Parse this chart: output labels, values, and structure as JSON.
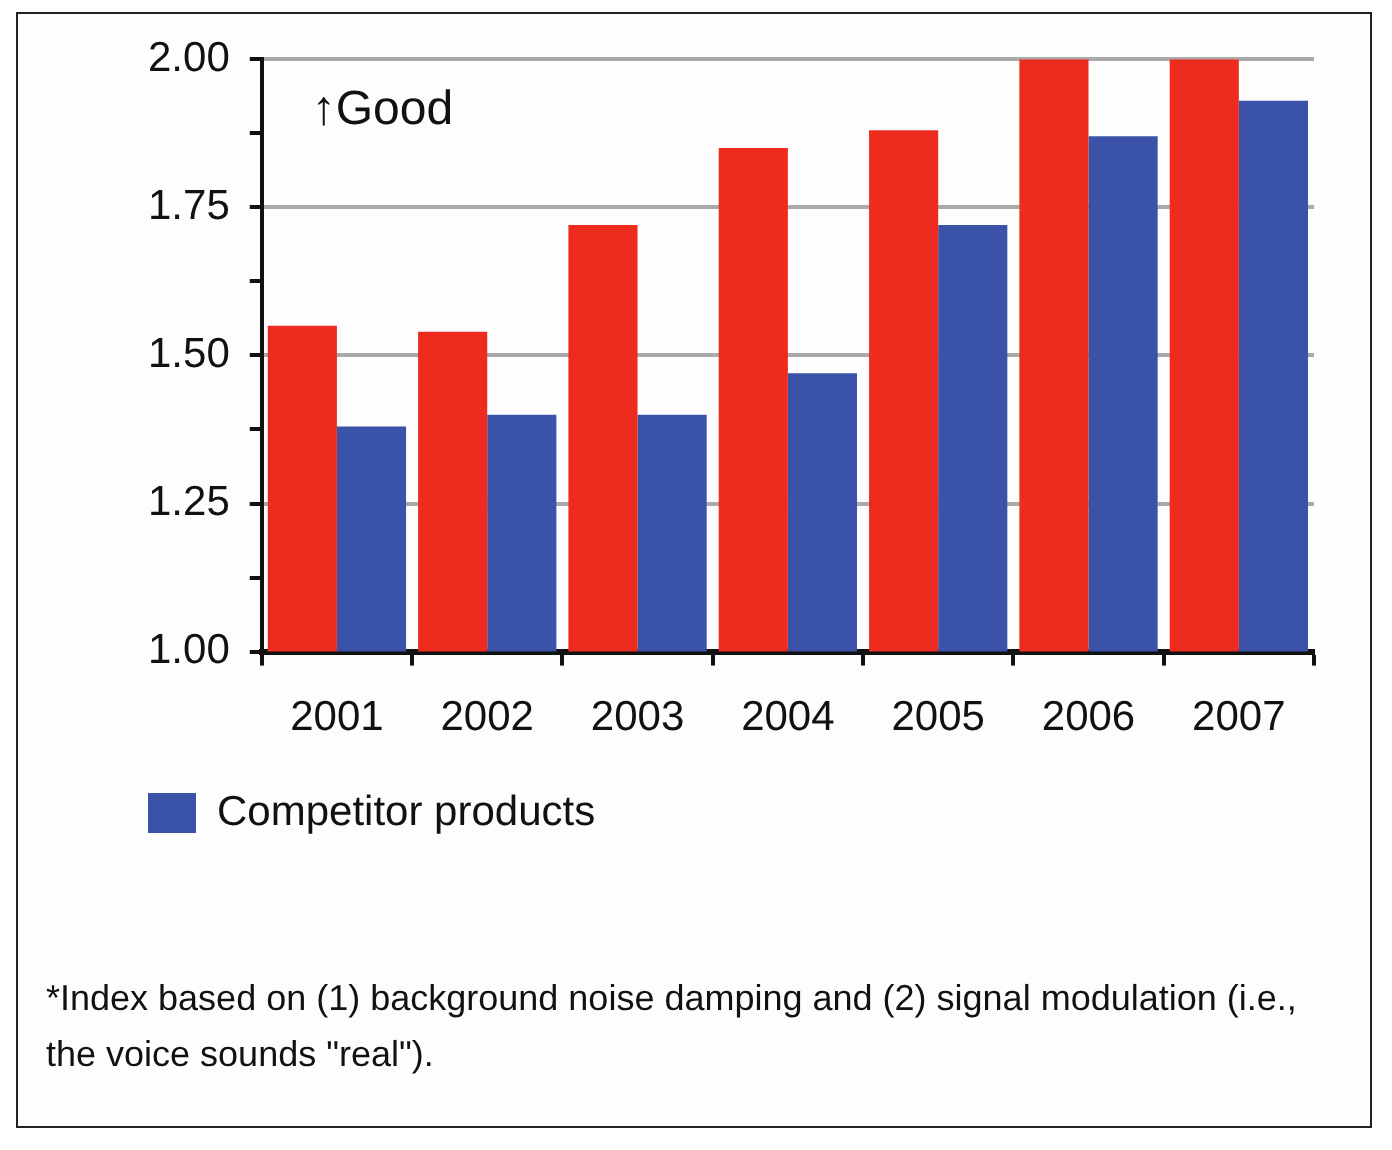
{
  "chart_data": {
    "type": "bar",
    "categories": [
      "2001",
      "2002",
      "2003",
      "2004",
      "2005",
      "2006",
      "2007"
    ],
    "series": [
      {
        "color": "#ee2b1f",
        "values": [
          1.55,
          1.54,
          1.72,
          1.85,
          1.88,
          2.0,
          2.0
        ]
      },
      {
        "name": "Competitor products",
        "color": "#3a53a8",
        "values": [
          1.38,
          1.4,
          1.4,
          1.47,
          1.72,
          1.87,
          1.93
        ]
      }
    ],
    "ylim": [
      1,
      2
    ],
    "yticks": [
      "1.00",
      {
        "value": 1.125,
        "label": null
      },
      {
        "value": 1.25,
        "label": "1.25"
      },
      {
        "value": 1.375,
        "label": null
      },
      {
        "value": 1.5,
        "label": "1.50"
      },
      {
        "value": 1.625,
        "label": null
      },
      {
        "value": 1.75,
        "label": "1.75"
      },
      {
        "value": 1.875,
        "label": null
      },
      {
        "value": 2,
        "label": "2.00"
      }
    ],
    "grid": "y",
    "legend": "bottom",
    "annotations": [
      "↑Good",
      "*Index based on (1) background noise damping and (2) signal modulation (i.e., the voice sounds \"real\")."
    ]
  }
}
